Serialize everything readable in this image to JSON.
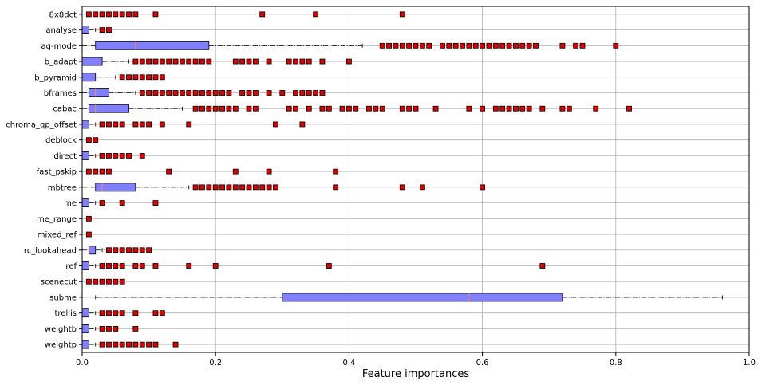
{
  "chart_data": {
    "type": "boxplot",
    "orientation": "horizontal",
    "xlabel": "Feature importances",
    "xlim": [
      0,
      1
    ],
    "x_ticks": [
      0.0,
      0.2,
      0.4,
      0.6,
      0.8,
      1.0
    ],
    "x_tick_labels": [
      "0.0",
      "0.2",
      "0.4",
      "0.6",
      "0.8",
      "1.0"
    ],
    "grid": true,
    "colors": {
      "box_fill": "#8080ff",
      "median": "#ff8c3a",
      "outlier_fill": "#e00000",
      "grid": "#b0b0b0"
    },
    "features": [
      {
        "name": "8x8dct",
        "q1": 0.0,
        "median": 0.0,
        "q3": 0.0,
        "whisker_low": 0.0,
        "whisker_high": 0.0,
        "outliers": [
          0.01,
          0.02,
          0.03,
          0.04,
          0.05,
          0.06,
          0.07,
          0.08,
          0.11,
          0.27,
          0.35,
          0.48
        ]
      },
      {
        "name": "analyse",
        "q1": 0.0,
        "median": 0.0,
        "q3": 0.01,
        "whisker_low": 0.0,
        "whisker_high": 0.02,
        "outliers": [
          0.03,
          0.04
        ]
      },
      {
        "name": "aq-mode",
        "q1": 0.02,
        "median": 0.08,
        "q3": 0.19,
        "whisker_low": 0.0,
        "whisker_high": 0.42,
        "outliers": [
          0.45,
          0.46,
          0.47,
          0.48,
          0.49,
          0.5,
          0.51,
          0.52,
          0.54,
          0.55,
          0.56,
          0.57,
          0.58,
          0.59,
          0.6,
          0.61,
          0.62,
          0.63,
          0.64,
          0.65,
          0.66,
          0.67,
          0.68,
          0.72,
          0.74,
          0.75,
          0.8
        ]
      },
      {
        "name": "b_adapt",
        "q1": 0.0,
        "median": 0.0,
        "q3": 0.03,
        "whisker_low": 0.0,
        "whisker_high": 0.07,
        "outliers": [
          0.08,
          0.09,
          0.1,
          0.11,
          0.12,
          0.13,
          0.14,
          0.15,
          0.16,
          0.17,
          0.18,
          0.19,
          0.23,
          0.24,
          0.25,
          0.26,
          0.28,
          0.31,
          0.32,
          0.33,
          0.34,
          0.36,
          0.4
        ]
      },
      {
        "name": "b_pyramid",
        "q1": 0.0,
        "median": 0.0,
        "q3": 0.02,
        "whisker_low": 0.0,
        "whisker_high": 0.05,
        "outliers": [
          0.06,
          0.07,
          0.08,
          0.09,
          0.1,
          0.11,
          0.12
        ]
      },
      {
        "name": "bframes",
        "q1": 0.01,
        "median": 0.02,
        "q3": 0.04,
        "whisker_low": 0.0,
        "whisker_high": 0.08,
        "outliers": [
          0.09,
          0.1,
          0.11,
          0.12,
          0.13,
          0.14,
          0.15,
          0.16,
          0.17,
          0.18,
          0.19,
          0.2,
          0.21,
          0.22,
          0.24,
          0.25,
          0.26,
          0.28,
          0.3,
          0.32,
          0.33,
          0.34,
          0.35,
          0.36
        ]
      },
      {
        "name": "cabac",
        "q1": 0.01,
        "median": 0.02,
        "q3": 0.07,
        "whisker_low": 0.0,
        "whisker_high": 0.15,
        "outliers": [
          0.17,
          0.18,
          0.19,
          0.2,
          0.21,
          0.22,
          0.23,
          0.25,
          0.26,
          0.31,
          0.32,
          0.34,
          0.36,
          0.37,
          0.39,
          0.4,
          0.41,
          0.43,
          0.44,
          0.45,
          0.48,
          0.49,
          0.5,
          0.53,
          0.58,
          0.6,
          0.62,
          0.63,
          0.64,
          0.65,
          0.66,
          0.67,
          0.69,
          0.72,
          0.73,
          0.77,
          0.82
        ]
      },
      {
        "name": "chroma_qp_offset",
        "q1": 0.0,
        "median": 0.0,
        "q3": 0.01,
        "whisker_low": 0.0,
        "whisker_high": 0.02,
        "outliers": [
          0.03,
          0.04,
          0.05,
          0.06,
          0.08,
          0.09,
          0.1,
          0.12,
          0.16,
          0.29,
          0.33
        ]
      },
      {
        "name": "deblock",
        "q1": 0.0,
        "median": 0.0,
        "q3": 0.0,
        "whisker_low": 0.0,
        "whisker_high": 0.0,
        "outliers": [
          0.01,
          0.02
        ]
      },
      {
        "name": "direct",
        "q1": 0.0,
        "median": 0.0,
        "q3": 0.01,
        "whisker_low": 0.0,
        "whisker_high": 0.02,
        "outliers": [
          0.03,
          0.04,
          0.05,
          0.06,
          0.07,
          0.09
        ]
      },
      {
        "name": "fast_pskip",
        "q1": 0.0,
        "median": 0.0,
        "q3": 0.0,
        "whisker_low": 0.0,
        "whisker_high": 0.0,
        "outliers": [
          0.01,
          0.02,
          0.03,
          0.04,
          0.13,
          0.23,
          0.28,
          0.38
        ]
      },
      {
        "name": "mbtree",
        "q1": 0.02,
        "median": 0.03,
        "q3": 0.08,
        "whisker_low": 0.0,
        "whisker_high": 0.16,
        "outliers": [
          0.17,
          0.18,
          0.19,
          0.2,
          0.21,
          0.22,
          0.23,
          0.24,
          0.25,
          0.26,
          0.27,
          0.28,
          0.29,
          0.38,
          0.48,
          0.51,
          0.6
        ]
      },
      {
        "name": "me",
        "q1": 0.0,
        "median": 0.0,
        "q3": 0.01,
        "whisker_low": 0.0,
        "whisker_high": 0.02,
        "outliers": [
          0.03,
          0.06,
          0.11
        ]
      },
      {
        "name": "me_range",
        "q1": 0.0,
        "median": 0.0,
        "q3": 0.0,
        "whisker_low": 0.0,
        "whisker_high": 0.0,
        "outliers": [
          0.01
        ]
      },
      {
        "name": "mixed_ref",
        "q1": 0.0,
        "median": 0.0,
        "q3": 0.0,
        "whisker_low": 0.0,
        "whisker_high": 0.0,
        "outliers": [
          0.01
        ]
      },
      {
        "name": "rc_lookahead",
        "q1": 0.01,
        "median": 0.01,
        "q3": 0.02,
        "whisker_low": 0.0,
        "whisker_high": 0.03,
        "outliers": [
          0.04,
          0.05,
          0.06,
          0.07,
          0.08,
          0.09,
          0.1
        ]
      },
      {
        "name": "ref",
        "q1": 0.0,
        "median": 0.0,
        "q3": 0.01,
        "whisker_low": 0.0,
        "whisker_high": 0.02,
        "outliers": [
          0.03,
          0.04,
          0.05,
          0.06,
          0.08,
          0.09,
          0.11,
          0.16,
          0.2,
          0.37,
          0.69
        ]
      },
      {
        "name": "scenecut",
        "q1": 0.0,
        "median": 0.0,
        "q3": 0.0,
        "whisker_low": 0.0,
        "whisker_high": 0.0,
        "outliers": [
          0.01,
          0.02,
          0.03,
          0.04,
          0.05,
          0.06
        ]
      },
      {
        "name": "subme",
        "q1": 0.3,
        "median": 0.58,
        "q3": 0.72,
        "whisker_low": 0.02,
        "whisker_high": 0.96,
        "outliers": []
      },
      {
        "name": "trellis",
        "q1": 0.0,
        "median": 0.0,
        "q3": 0.01,
        "whisker_low": 0.0,
        "whisker_high": 0.02,
        "outliers": [
          0.03,
          0.04,
          0.05,
          0.06,
          0.08,
          0.11,
          0.12
        ]
      },
      {
        "name": "weightb",
        "q1": 0.0,
        "median": 0.0,
        "q3": 0.01,
        "whisker_low": 0.0,
        "whisker_high": 0.02,
        "outliers": [
          0.03,
          0.04,
          0.05,
          0.08
        ]
      },
      {
        "name": "weightp",
        "q1": 0.0,
        "median": 0.0,
        "q3": 0.01,
        "whisker_low": 0.0,
        "whisker_high": 0.02,
        "outliers": [
          0.03,
          0.04,
          0.05,
          0.06,
          0.07,
          0.08,
          0.09,
          0.1,
          0.11,
          0.14
        ]
      }
    ]
  }
}
